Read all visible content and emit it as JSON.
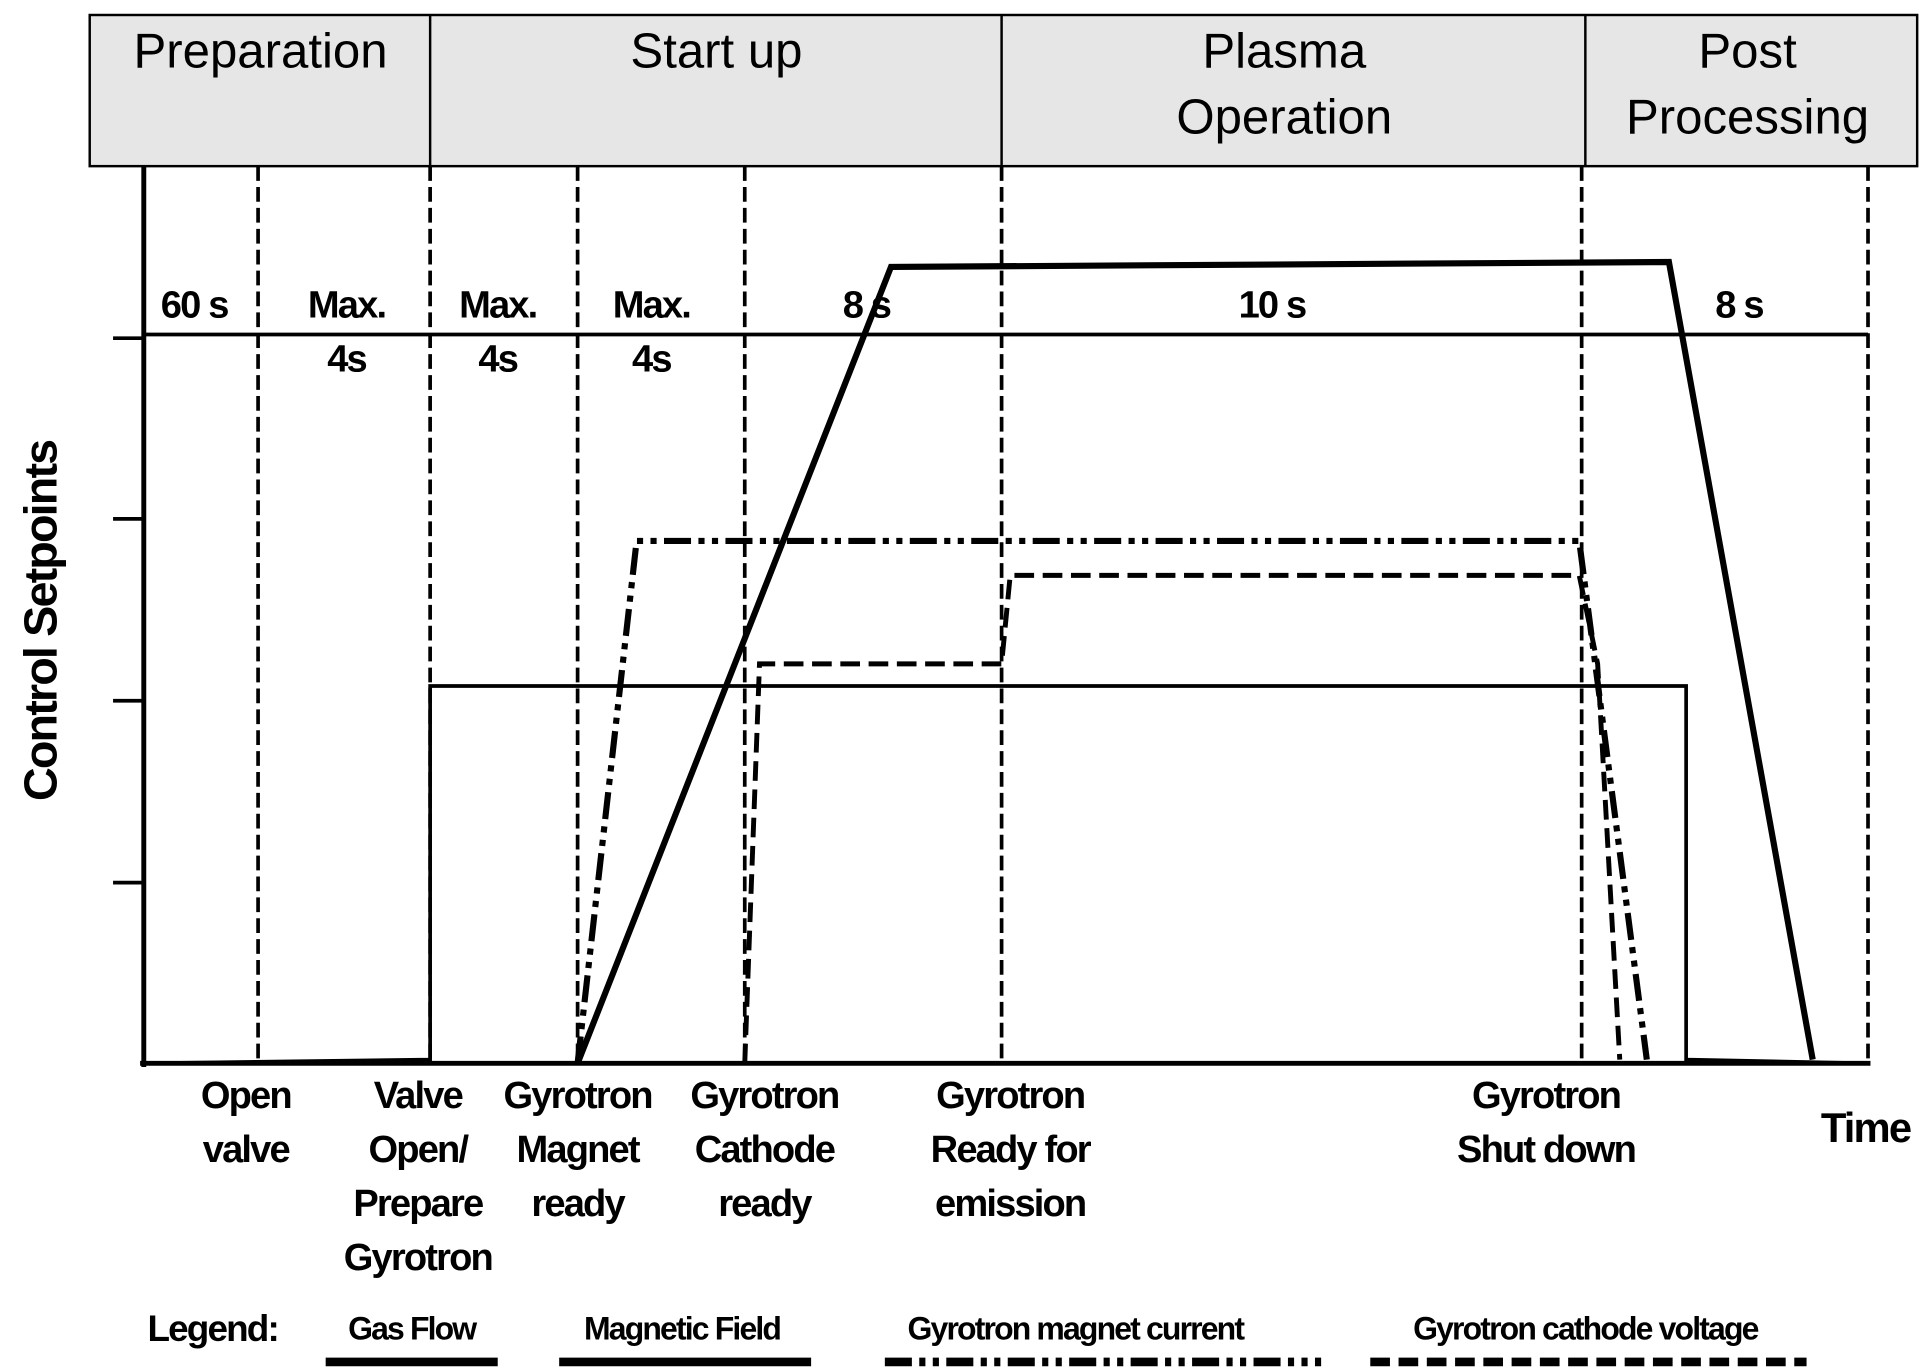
{
  "phases": [
    {
      "lines": [
        "Preparation"
      ]
    },
    {
      "lines": [
        "Start up"
      ]
    },
    {
      "lines": [
        "Plasma",
        "Operation"
      ]
    },
    {
      "lines": [
        "Post",
        "Processing"
      ]
    }
  ],
  "durations": [
    {
      "lines": [
        "60 s"
      ]
    },
    {
      "lines": [
        "Max.",
        "4s"
      ]
    },
    {
      "lines": [
        "Max.",
        "4s"
      ]
    },
    {
      "lines": [
        "Max.",
        "4s"
      ]
    },
    {
      "lines": [
        "8 s"
      ]
    },
    {
      "lines": [
        "10 s"
      ]
    },
    {
      "lines": [
        "8 s"
      ]
    }
  ],
  "events": [
    {
      "lines": [
        "Open",
        "valve"
      ]
    },
    {
      "lines": [
        "Valve",
        "Open/",
        "Prepare",
        "Gyrotron"
      ]
    },
    {
      "lines": [
        "Gyrotron",
        "Magnet",
        "ready"
      ]
    },
    {
      "lines": [
        "Gyrotron",
        "Cathode",
        "ready"
      ]
    },
    {
      "lines": [
        "Gyrotron",
        "Ready for",
        "emission"
      ]
    },
    {
      "lines": [
        "Gyrotron",
        "Shut down"
      ]
    }
  ],
  "y_axis_label": "Control Setpoints",
  "x_axis_label": "Time",
  "legend": {
    "label": "Legend:",
    "items": [
      "Gas Flow",
      "Magnetic Field",
      "Gyrotron magnet current",
      "Gyrotron cathode voltage"
    ]
  }
}
